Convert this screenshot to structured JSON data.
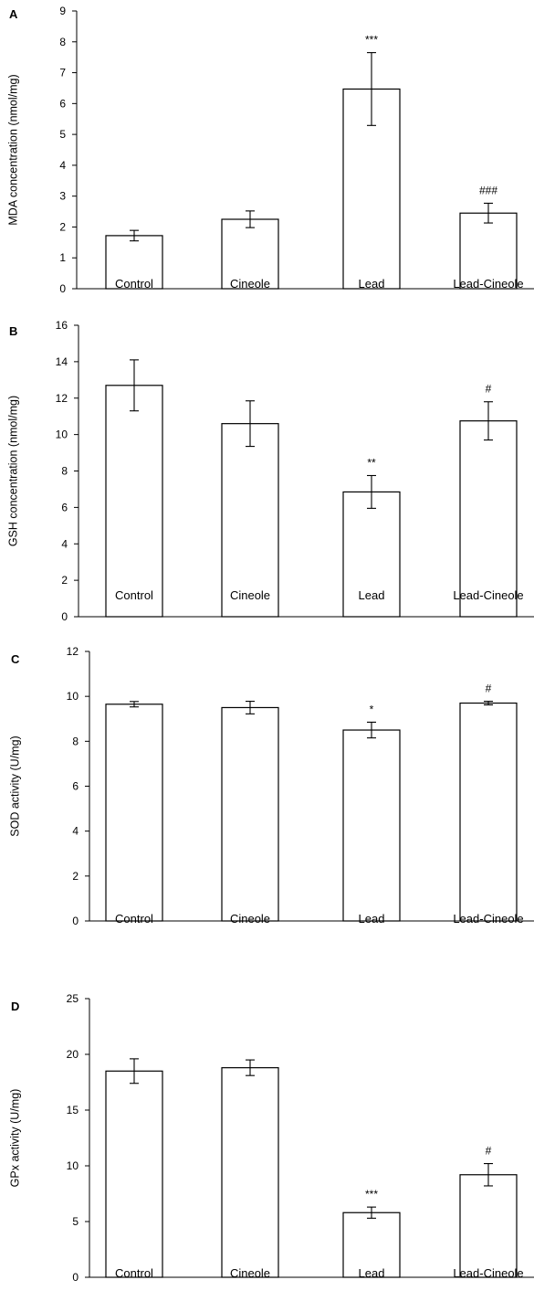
{
  "chart_data": [
    {
      "type": "bar",
      "panel": "A",
      "ylabel": "MDA concentration (nmol/mg)",
      "categories": [
        "Control",
        "Cineole",
        "Lead",
        "Lead-Cineole"
      ],
      "values": [
        1.72,
        2.25,
        6.47,
        2.45
      ],
      "errors": [
        0.17,
        0.27,
        1.18,
        0.32
      ],
      "annotations": [
        "",
        "",
        "***",
        "###"
      ],
      "ylim": [
        0,
        9
      ],
      "yticks": [
        0,
        1,
        2,
        3,
        4,
        5,
        6,
        7,
        8,
        9
      ]
    },
    {
      "type": "bar",
      "panel": "B",
      "ylabel": "GSH concentration (nmol/mg)",
      "categories": [
        "Control",
        "Cineole",
        "Lead",
        "Lead-Cineole"
      ],
      "values": [
        12.7,
        10.6,
        6.85,
        10.75
      ],
      "errors": [
        1.4,
        1.25,
        0.9,
        1.05
      ],
      "annotations": [
        "",
        "",
        "**",
        "#"
      ],
      "ylim": [
        0,
        16
      ],
      "yticks": [
        0,
        2,
        4,
        6,
        8,
        10,
        12,
        14,
        16
      ]
    },
    {
      "type": "bar",
      "panel": "C",
      "ylabel": "SOD activity (U/mg)",
      "categories": [
        "Control",
        "Cineole",
        "Lead",
        "Lead-Cineole"
      ],
      "values": [
        9.65,
        9.5,
        8.5,
        9.7
      ],
      "errors": [
        0.12,
        0.28,
        0.35,
        0.08
      ],
      "annotations": [
        "",
        "",
        "*",
        "#"
      ],
      "ylim": [
        0,
        12
      ],
      "yticks": [
        0,
        2,
        4,
        6,
        8,
        10,
        12
      ]
    },
    {
      "type": "bar",
      "panel": "D",
      "ylabel": "GPx activity (U/mg)",
      "categories": [
        "Control",
        "Cineole",
        "Lead",
        "Lead-Cineole"
      ],
      "values": [
        18.5,
        18.8,
        5.8,
        9.2
      ],
      "errors": [
        1.1,
        0.7,
        0.5,
        1.0
      ],
      "annotations": [
        "",
        "",
        "***",
        "#"
      ],
      "ylim": [
        0,
        25
      ],
      "yticks": [
        0,
        5,
        10,
        15,
        20,
        25
      ]
    }
  ]
}
